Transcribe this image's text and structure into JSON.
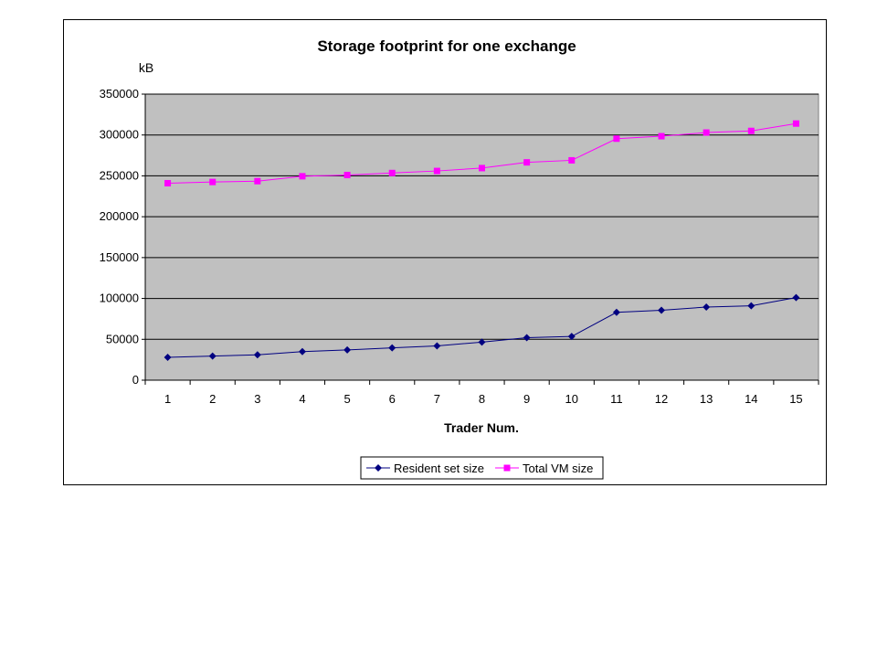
{
  "chart_data": {
    "type": "line",
    "title": "Storage footprint for one exchange",
    "ylabel": "kB",
    "xlabel": "Trader Num.",
    "categories": [
      "1",
      "2",
      "3",
      "4",
      "5",
      "6",
      "7",
      "8",
      "9",
      "10",
      "11",
      "12",
      "13",
      "14",
      "15"
    ],
    "ylim": [
      0,
      350000
    ],
    "yticks": [
      0,
      50000,
      100000,
      150000,
      200000,
      250000,
      300000,
      350000
    ],
    "grid": "horizontal",
    "plot_background": "#C0C0C0",
    "legend_position": "bottom",
    "series": [
      {
        "name": "Resident set size",
        "color": "#000080",
        "marker": "diamond",
        "values": [
          28000,
          29500,
          31000,
          35000,
          37000,
          39500,
          42000,
          46500,
          52000,
          53500,
          83000,
          85500,
          89500,
          91000,
          101000
        ]
      },
      {
        "name": "Total VM size",
        "color": "#FF00FF",
        "marker": "square",
        "values": [
          241000,
          242500,
          243500,
          249500,
          251000,
          253500,
          256000,
          259500,
          266500,
          269000,
          295500,
          298500,
          303000,
          305000,
          314000
        ]
      }
    ]
  }
}
